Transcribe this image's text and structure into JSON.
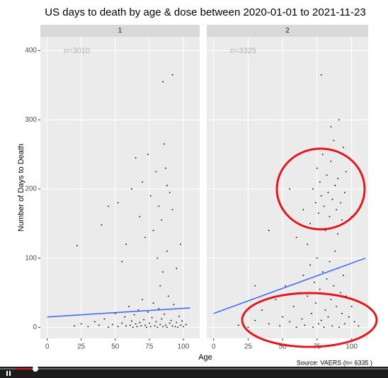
{
  "chart_data": {
    "type": "scatter",
    "title": "US days to death by age & dose between 2020-01-01 to 2021-11-23",
    "x_label": "Age",
    "y_label": "Number of Days to Death",
    "caption": "Source: VAERS (n= 6335 )",
    "xlim": [
      -5,
      112
    ],
    "ylim": [
      -16,
      420
    ],
    "xticks": [
      0,
      25,
      50,
      75,
      100
    ],
    "yticks": [
      0,
      100,
      200,
      300,
      400
    ],
    "grid": true,
    "point_color": "#000000",
    "trend_color": "#3366ff",
    "facets": [
      {
        "label": "1",
        "annotation": "n=3010",
        "x": [
          20,
          25,
          30,
          35,
          38,
          42,
          45,
          48,
          50,
          52,
          55,
          57,
          58,
          60,
          61,
          62,
          63,
          64,
          65,
          66,
          67,
          68,
          69,
          70,
          71,
          72,
          73,
          74,
          75,
          76,
          77,
          78,
          79,
          80,
          81,
          82,
          83,
          84,
          85,
          86,
          87,
          88,
          89,
          90,
          91,
          92,
          93,
          94,
          95,
          96,
          97,
          98,
          99,
          100,
          102,
          22,
          40,
          45,
          52,
          55,
          58,
          62,
          65,
          68,
          70,
          72,
          74,
          76,
          78,
          80,
          82,
          84,
          86,
          88,
          90,
          92,
          95,
          98,
          85,
          92,
          83,
          87,
          85,
          88,
          81
        ],
        "y": [
          2,
          5,
          1,
          8,
          3,
          12,
          0,
          4,
          20,
          1,
          6,
          15,
          2,
          30,
          3,
          9,
          0,
          18,
          5,
          1,
          25,
          7,
          2,
          40,
          11,
          3,
          0,
          22,
          6,
          1,
          14,
          35,
          2,
          8,
          0,
          27,
          4,
          12,
          1,
          19,
          3,
          0,
          45,
          6,
          10,
          2,
          33,
          1,
          7,
          0,
          16,
          3,
          9,
          1,
          4,
          118,
          148,
          175,
          180,
          95,
          120,
          200,
          245,
          160,
          210,
          130,
          250,
          190,
          140,
          225,
          175,
          155,
          265,
          110,
          195,
          170,
          85,
          120,
          355,
          365,
          60,
          230,
          80,
          205,
          100
        ],
        "trend": {
          "x": [
            0,
            105
          ],
          "y": [
            15,
            28
          ]
        }
      },
      {
        "label": "2",
        "annotation": "n=3325",
        "x": [
          18,
          25,
          30,
          35,
          40,
          45,
          48,
          50,
          52,
          55,
          58,
          60,
          62,
          64,
          65,
          66,
          68,
          70,
          71,
          72,
          73,
          74,
          75,
          76,
          77,
          78,
          79,
          80,
          81,
          82,
          83,
          84,
          85,
          86,
          87,
          88,
          89,
          90,
          91,
          92,
          93,
          94,
          95,
          96,
          98,
          100,
          102,
          105,
          70,
          72,
          74,
          75,
          76,
          77,
          78,
          79,
          80,
          81,
          82,
          83,
          84,
          85,
          86,
          87,
          88,
          89,
          90,
          91,
          92,
          93,
          94,
          95,
          60,
          65,
          55,
          40,
          30,
          78,
          85,
          90,
          96,
          100,
          68
        ],
        "y": [
          3,
          0,
          10,
          25,
          5,
          40,
          2,
          15,
          60,
          8,
          30,
          0,
          50,
          12,
          75,
          3,
          45,
          90,
          20,
          0,
          65,
          35,
          100,
          5,
          55,
          10,
          80,
          0,
          25,
          70,
          15,
          95,
          40,
          2,
          60,
          110,
          30,
          85,
          0,
          50,
          20,
          75,
          5,
          45,
          15,
          30,
          8,
          2,
          150,
          200,
          180,
          230,
          165,
          210,
          190,
          250,
          175,
          140,
          220,
          195,
          160,
          240,
          185,
          270,
          205,
          170,
          215,
          300,
          180,
          155,
          260,
          195,
          130,
          170,
          200,
          140,
          60,
          365,
          290,
          135,
          225,
          160,
          120
        ],
        "trend": {
          "x": [
            0,
            110
          ],
          "y": [
            20,
            100
          ]
        }
      }
    ]
  }
}
